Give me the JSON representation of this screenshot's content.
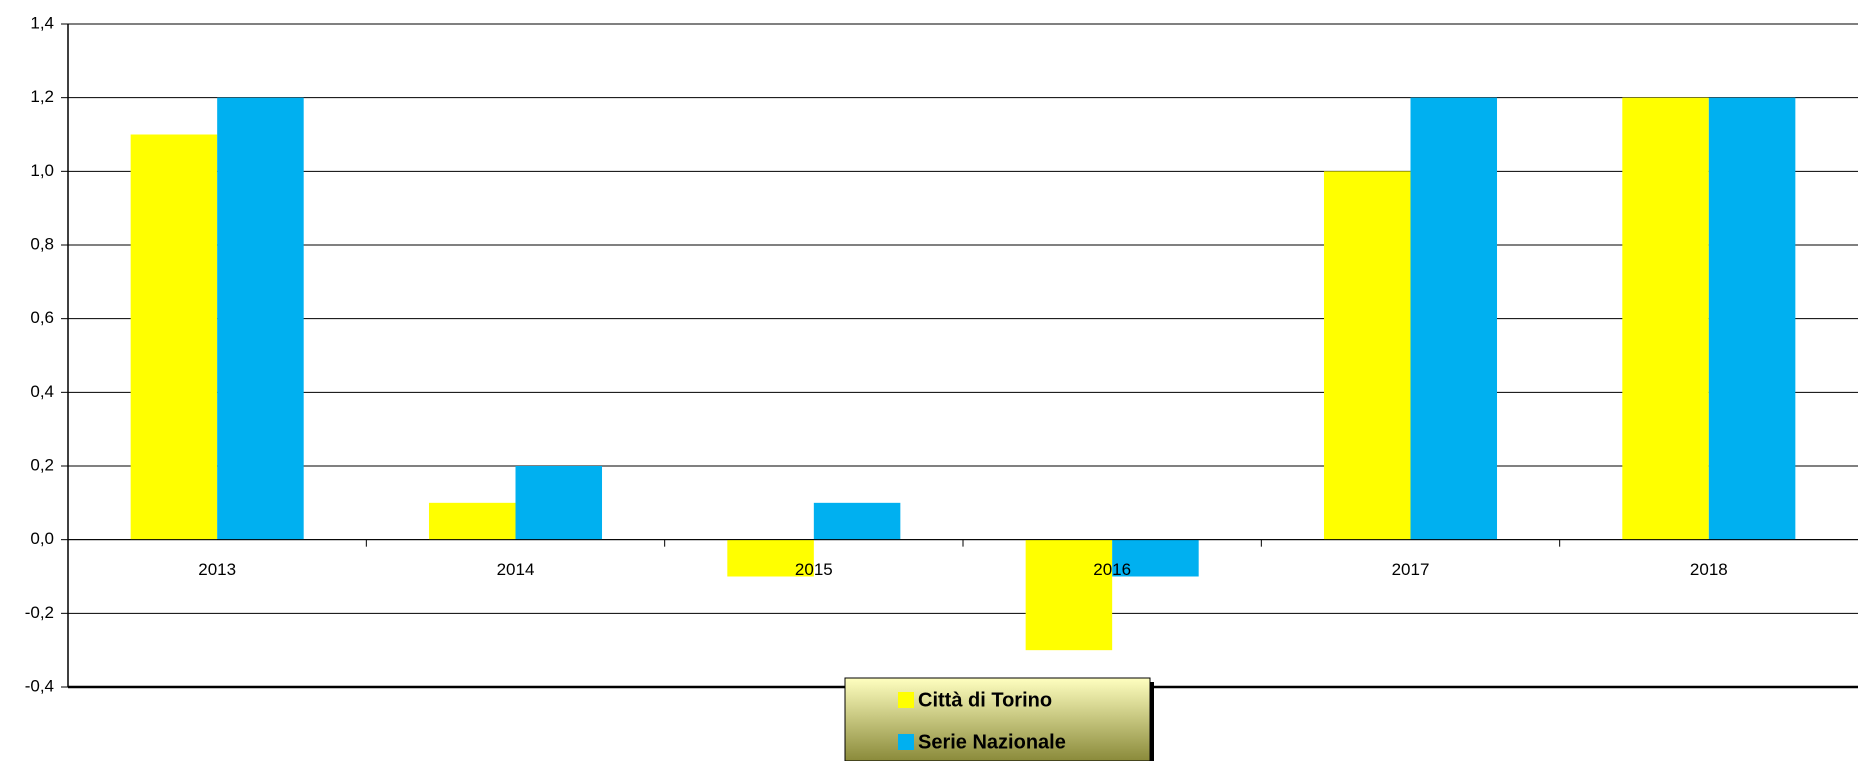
{
  "chart_data": {
    "type": "bar",
    "categories": [
      "2013",
      "2014",
      "2015",
      "2016",
      "2017",
      "2018"
    ],
    "series": [
      {
        "name": "Città di Torino",
        "color": "#ffff00",
        "values": [
          1.1,
          0.1,
          -0.1,
          -0.3,
          1.0,
          1.2
        ]
      },
      {
        "name": "Serie Nazionale",
        "color": "#00b0f0",
        "values": [
          1.2,
          0.2,
          0.1,
          -0.1,
          1.2,
          1.2
        ]
      }
    ],
    "ylim": [
      -0.4,
      1.4
    ],
    "yticks": [
      {
        "value": -0.4,
        "label": "-0,4"
      },
      {
        "value": -0.2,
        "label": "-0,2"
      },
      {
        "value": 0,
        "label": "0,0"
      },
      {
        "value": 0.2,
        "label": "0,2"
      },
      {
        "value": 0.4,
        "label": "0,4"
      },
      {
        "value": 0.6,
        "label": "0,6"
      },
      {
        "value": 0.8,
        "label": "0,8"
      },
      {
        "value": 1.0,
        "label": "1,0"
      },
      {
        "value": 1.2,
        "label": "1,2"
      },
      {
        "value": 1.4,
        "label": "1,4"
      }
    ],
    "grid": true,
    "legend": "bottom"
  }
}
